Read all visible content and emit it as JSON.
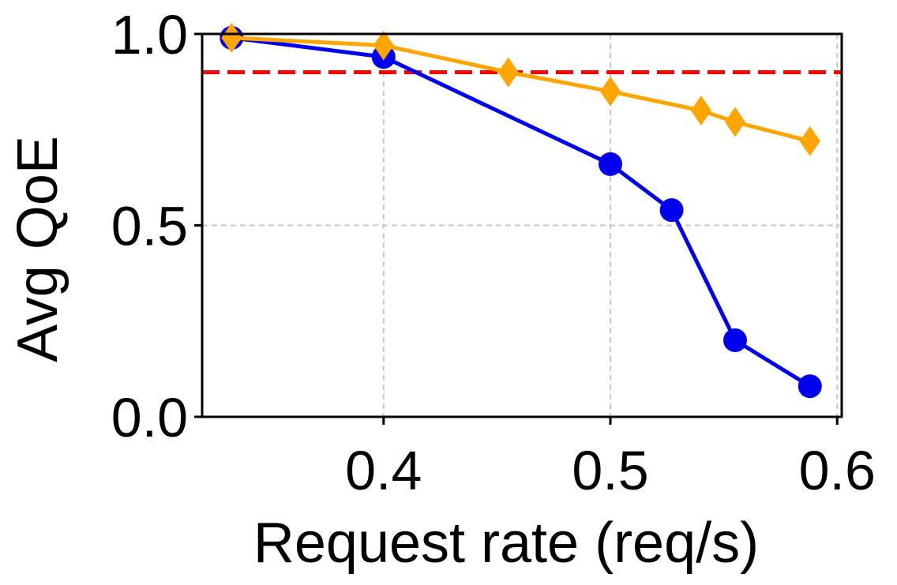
{
  "chart_data": {
    "type": "line",
    "title": "",
    "xlabel": "Request rate (req/s)",
    "ylabel": "Avg QoE",
    "xlim": [
      0.32,
      0.602
    ],
    "ylim": [
      0.0,
      1.0
    ],
    "xticks": [
      0.4,
      0.5,
      0.6
    ],
    "xtick_labels": [
      "0.4",
      "0.5",
      "0.6"
    ],
    "yticks": [
      0.0,
      0.5,
      1.0
    ],
    "ytick_labels": [
      "0.0",
      "0.5",
      "1.0"
    ],
    "grid": true,
    "legend": "none",
    "reference_line": {
      "y": 0.9,
      "color": "#ff0000",
      "style": "dashed"
    },
    "series": [
      {
        "color": "#0000ee",
        "marker": "circle",
        "x": [
          0.333,
          0.4,
          0.5,
          0.527,
          0.555,
          0.588
        ],
        "y": [
          0.99,
          0.94,
          0.66,
          0.54,
          0.2,
          0.08
        ]
      },
      {
        "color": "#ffa500",
        "marker": "diamond",
        "x": [
          0.333,
          0.4,
          0.455,
          0.5,
          0.54,
          0.555,
          0.588
        ],
        "y": [
          0.99,
          0.97,
          0.9,
          0.85,
          0.8,
          0.77,
          0.72
        ]
      }
    ]
  }
}
